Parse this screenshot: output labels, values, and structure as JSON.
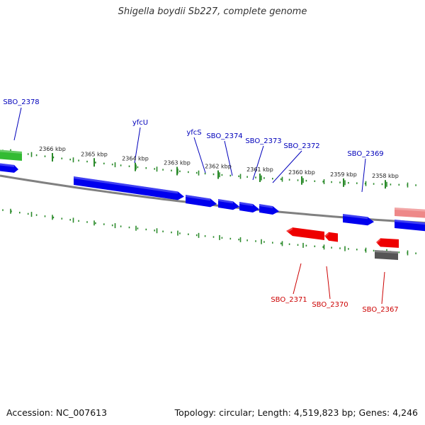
{
  "title": "Shigella boydii Sb227, complete genome",
  "footer": {
    "accession": "Accession: NC_007613",
    "summary": "Topology: circular; Length: 4,519,823 bp; Genes: 4,246"
  },
  "colors": {
    "forward_gene": "#0000ee",
    "reverse_gene": "#ee0000",
    "other_gene_green": "#33bb33",
    "pseudo_gene_pink": "#ee8888",
    "gray_gene": "#555555",
    "backbone": "#808080",
    "tick": "#2a8a2a",
    "forward_label": "#0000bb",
    "reverse_label": "#cc0000"
  },
  "scale_labels": [
    "2366 kbp",
    "2365 kbp",
    "2364 kbp",
    "2363 kbp",
    "2362 kbp",
    "2361 kbp",
    "2360 kbp",
    "2359 kbp",
    "2358 kbp"
  ],
  "forward_gene_labels": [
    "SBO_2378",
    "yfcU",
    "yfcS",
    "SBO_2374",
    "SBO_2373",
    "SBO_2372",
    "SBO_2369"
  ],
  "reverse_gene_labels": [
    "SBO_2371",
    "SBO_2370",
    "SBO_2367"
  ]
}
